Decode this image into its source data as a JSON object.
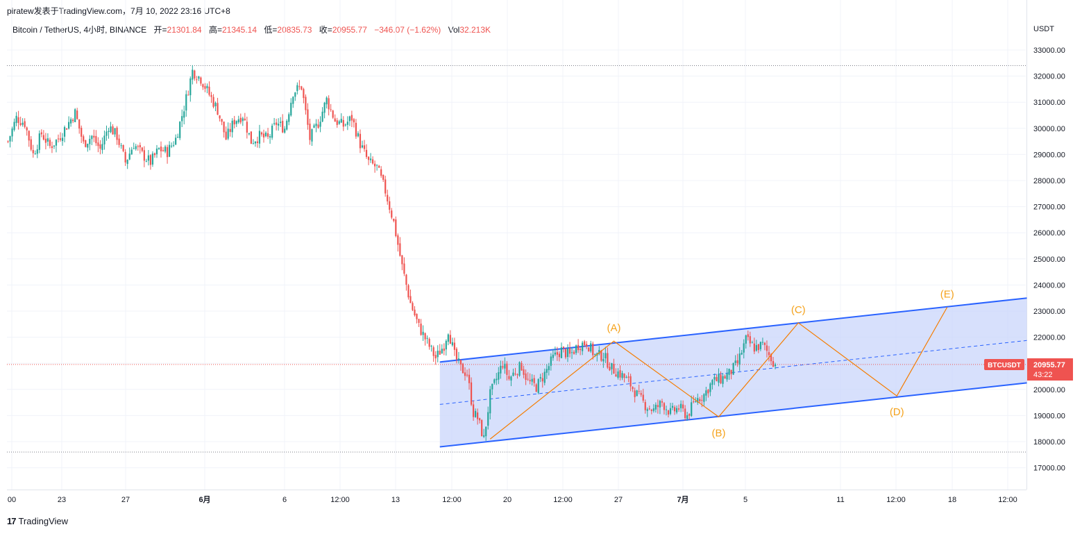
{
  "header": {
    "attribution": "piratew发表于TradingView.com，7月 10, 2022 23:16 UTC+8"
  },
  "legend": {
    "symbol": "Bitcoin / TetherUS, 4小时, BINANCE",
    "open_label": "开=",
    "open": "21301.84",
    "high_label": "高=",
    "high": "21345.14",
    "low_label": "低=",
    "low": "20835.73",
    "close_label": "收=",
    "close": "20955.77",
    "change": "−346.07 (−1.62%)",
    "vol_label": "Vol",
    "vol": "32.213K"
  },
  "price_axis": {
    "unit": "USDT",
    "ticks": [
      "33000.00",
      "32000.00",
      "31000.00",
      "30000.00",
      "29000.00",
      "28000.00",
      "27000.00",
      "26000.00",
      "25000.00",
      "24000.00",
      "23000.00",
      "22000.00",
      "21000.00",
      "20000.00",
      "19000.00",
      "18000.00",
      "17000.00"
    ]
  },
  "price_badge": {
    "symbol": "BTCUSDT",
    "price": "20955.77",
    "countdown": "43:22"
  },
  "footer": {
    "logo": "17",
    "brand": "TradingView"
  },
  "colors": {
    "up": "#26a69a",
    "down": "#ef5350",
    "channel": "#2962ff",
    "channel_fill": "#c9d6fb",
    "wave": "#f57c00",
    "wave_label": "#f5a21b",
    "last_price_line": "#ef5350"
  },
  "chart_data": {
    "type": "candlestick",
    "title": "Bitcoin / TetherUS, 4小时, BINANCE",
    "ylabel": "USDT",
    "ylim": [
      16600,
      33500
    ],
    "x_tick_labels": [
      "00",
      "23",
      "27",
      "6月",
      "6",
      "12:00",
      "13",
      "12:00",
      "20",
      "12:00",
      "27",
      "7月",
      "5",
      "11",
      "12:00",
      "18",
      "12:00"
    ],
    "price_path": [
      [
        0,
        29500
      ],
      [
        4,
        30400
      ],
      [
        8,
        30200
      ],
      [
        12,
        29000
      ],
      [
        16,
        29800
      ],
      [
        20,
        29300
      ],
      [
        24,
        29600
      ],
      [
        28,
        30100
      ],
      [
        32,
        30600
      ],
      [
        36,
        29400
      ],
      [
        40,
        29700
      ],
      [
        44,
        29200
      ],
      [
        48,
        30100
      ],
      [
        52,
        29700
      ],
      [
        56,
        28700
      ],
      [
        60,
        29400
      ],
      [
        64,
        29000
      ],
      [
        68,
        28700
      ],
      [
        72,
        29200
      ],
      [
        76,
        29100
      ],
      [
        80,
        29600
      ],
      [
        84,
        30800
      ],
      [
        88,
        32200
      ],
      [
        92,
        31900
      ],
      [
        96,
        31300
      ],
      [
        100,
        30700
      ],
      [
        104,
        29600
      ],
      [
        108,
        30300
      ],
      [
        112,
        30500
      ],
      [
        116,
        29500
      ],
      [
        120,
        29700
      ],
      [
        124,
        29600
      ],
      [
        128,
        30200
      ],
      [
        132,
        30000
      ],
      [
        136,
        31400
      ],
      [
        140,
        31600
      ],
      [
        144,
        29600
      ],
      [
        148,
        30200
      ],
      [
        152,
        31100
      ],
      [
        156,
        30300
      ],
      [
        160,
        30100
      ],
      [
        164,
        30400
      ],
      [
        168,
        29400
      ],
      [
        172,
        28700
      ],
      [
        176,
        28500
      ],
      [
        180,
        27600
      ],
      [
        184,
        26400
      ],
      [
        188,
        24700
      ],
      [
        192,
        23300
      ],
      [
        196,
        22400
      ],
      [
        200,
        21800
      ],
      [
        204,
        21200
      ],
      [
        208,
        21700
      ],
      [
        210,
        22300
      ],
      [
        213,
        21300
      ],
      [
        216,
        20800
      ],
      [
        219,
        20600
      ],
      [
        222,
        19100
      ],
      [
        224,
        18900
      ],
      [
        227,
        18100
      ],
      [
        230,
        19800
      ],
      [
        233,
        20400
      ],
      [
        236,
        21000
      ],
      [
        239,
        20400
      ],
      [
        242,
        20700
      ],
      [
        245,
        20900
      ],
      [
        248,
        20300
      ],
      [
        252,
        20100
      ],
      [
        256,
        20600
      ],
      [
        260,
        21200
      ],
      [
        264,
        21500
      ],
      [
        268,
        21300
      ],
      [
        272,
        21700
      ],
      [
        276,
        21800
      ],
      [
        280,
        21300
      ],
      [
        284,
        21300
      ],
      [
        288,
        20800
      ],
      [
        292,
        20600
      ],
      [
        296,
        20300
      ],
      [
        300,
        19800
      ],
      [
        304,
        19400
      ],
      [
        308,
        19200
      ],
      [
        312,
        19500
      ],
      [
        316,
        19100
      ],
      [
        320,
        19300
      ],
      [
        324,
        19000
      ],
      [
        328,
        19600
      ],
      [
        332,
        19800
      ],
      [
        336,
        20300
      ],
      [
        340,
        20400
      ],
      [
        344,
        20600
      ],
      [
        348,
        21000
      ],
      [
        352,
        21900
      ],
      [
        356,
        21600
      ],
      [
        360,
        21700
      ],
      [
        364,
        21200
      ],
      [
        366,
        20955.77
      ]
    ],
    "channel": {
      "upper": [
        [
          206,
          21050
        ],
        [
          486,
          23500
        ]
      ],
      "lower": [
        [
          206,
          17800
        ],
        [
          486,
          20250
        ]
      ],
      "mid": [
        [
          206,
          19425
        ],
        [
          486,
          21875
        ]
      ]
    },
    "wave_path": [
      [
        230,
        18100
      ],
      [
        289,
        21850
      ],
      [
        339,
        18950
      ],
      [
        377,
        22550
      ],
      [
        424,
        19750
      ],
      [
        448,
        23150
      ]
    ],
    "wave_labels": [
      {
        "text": "(A)",
        "x": 289,
        "y": 21850
      },
      {
        "text": "(B)",
        "x": 339,
        "y": 18950
      },
      {
        "text": "(C)",
        "x": 377,
        "y": 22550
      },
      {
        "text": "(D)",
        "x": 424,
        "y": 19750
      },
      {
        "text": "(E)",
        "x": 448,
        "y": 23150
      }
    ],
    "horizontal_levels": [
      32400,
      17600
    ],
    "last_price": 20955.77
  }
}
